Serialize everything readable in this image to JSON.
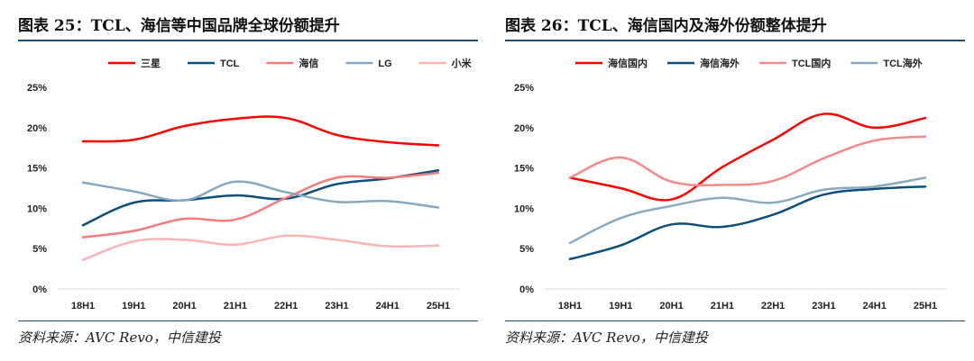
{
  "chart_data": [
    {
      "type": "line",
      "title": "图表 25：TCL、海信等中国品牌全球份额提升",
      "source": "资料来源：AVC Revo，中信建投",
      "categories": [
        "18H1",
        "19H1",
        "20H1",
        "21H1",
        "22H1",
        "23H1",
        "24H1",
        "25H1"
      ],
      "yticks": [
        "0%",
        "5%",
        "10%",
        "15%",
        "20%",
        "25%"
      ],
      "ylim": [
        0,
        25
      ],
      "legend_position": "top",
      "series": [
        {
          "name": "三星",
          "color": "#ff0000",
          "values": [
            18.3,
            18.5,
            20.2,
            21.1,
            21.2,
            19.1,
            18.2,
            17.8
          ]
        },
        {
          "name": "TCL",
          "color": "#0d4f7c",
          "values": [
            7.9,
            10.7,
            11.0,
            11.6,
            11.2,
            13.0,
            13.7,
            14.7
          ]
        },
        {
          "name": "海信",
          "color": "#f47c7c",
          "values": [
            6.4,
            7.2,
            8.7,
            8.6,
            11.3,
            13.8,
            13.8,
            14.4
          ]
        },
        {
          "name": "LG",
          "color": "#86a8c0",
          "values": [
            13.2,
            12.1,
            11.0,
            13.3,
            12.0,
            10.8,
            10.9,
            10.1
          ]
        },
        {
          "name": "小米",
          "color": "#fbb4b4",
          "values": [
            3.6,
            5.9,
            6.1,
            5.5,
            6.6,
            6.1,
            5.3,
            5.4
          ]
        }
      ]
    },
    {
      "type": "line",
      "title": "图表 26：TCL、海信国内及海外份额整体提升",
      "source": "资料来源：AVC Revo，中信建投",
      "categories": [
        "18H1",
        "19H1",
        "20H1",
        "21H1",
        "22H1",
        "23H1",
        "24H1",
        "25H1"
      ],
      "yticks": [
        "0%",
        "5%",
        "10%",
        "15%",
        "20%",
        "25%"
      ],
      "ylim": [
        0,
        25
      ],
      "legend_position": "top",
      "series": [
        {
          "name": "海信国内",
          "color": "#ff0000",
          "values": [
            13.8,
            12.5,
            11.1,
            15.1,
            18.5,
            21.7,
            20.0,
            21.2
          ]
        },
        {
          "name": "海信海外",
          "color": "#0d4f7c",
          "values": [
            3.7,
            5.4,
            8.0,
            7.7,
            9.2,
            11.7,
            12.4,
            12.7
          ]
        },
        {
          "name": "TCL国内",
          "color": "#f48a8a",
          "values": [
            13.8,
            16.3,
            13.3,
            12.9,
            13.4,
            16.2,
            18.4,
            18.9
          ]
        },
        {
          "name": "TCL海外",
          "color": "#8aaac2",
          "values": [
            5.7,
            8.8,
            10.3,
            11.3,
            10.7,
            12.3,
            12.7,
            13.8
          ]
        }
      ]
    }
  ]
}
